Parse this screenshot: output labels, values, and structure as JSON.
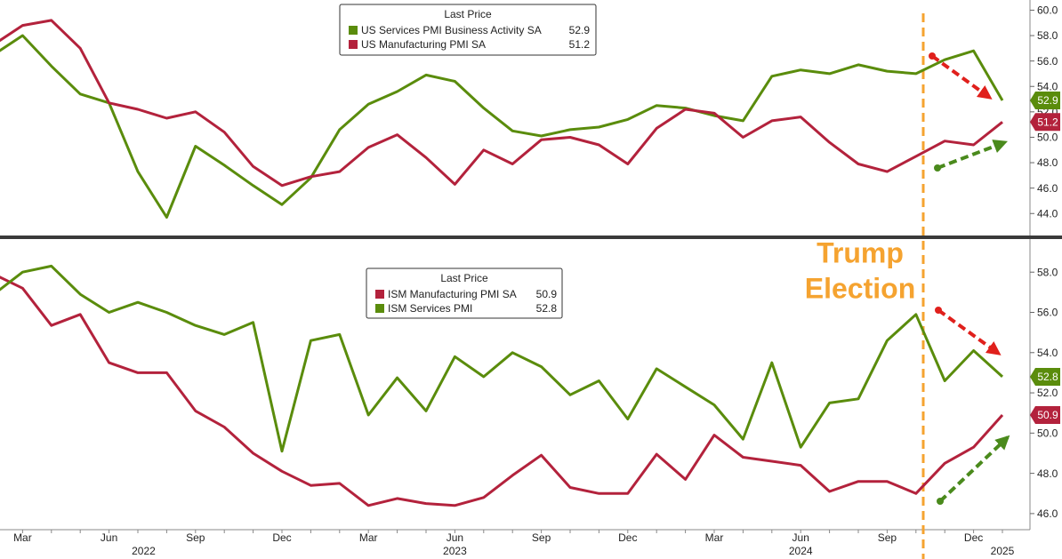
{
  "chart_data": [
    {
      "type": "line",
      "legend_title": "Last Price",
      "ylim": [
        42.2,
        60.8
      ],
      "yticks": [
        {
          "value": 44,
          "label": "44.0"
        },
        {
          "value": 46,
          "label": "46.0"
        },
        {
          "value": 48,
          "label": "48.0"
        },
        {
          "value": 50,
          "label": "50.0"
        },
        {
          "value": 52,
          "label": "52.0"
        },
        {
          "value": 54,
          "label": "54.0"
        },
        {
          "value": 56,
          "label": "56.0"
        },
        {
          "value": 58,
          "label": "58.0"
        },
        {
          "value": 60,
          "label": "60.0"
        }
      ],
      "series": [
        {
          "name": "US Services PMI Business Activity SA",
          "color": "#5a8c0c",
          "values": [
            56.5,
            58.0,
            55.6,
            53.4,
            52.7,
            47.3,
            43.7,
            49.3,
            47.8,
            46.2,
            44.7,
            46.8,
            50.6,
            52.6,
            53.6,
            54.9,
            54.4,
            52.3,
            50.5,
            50.1,
            50.6,
            50.8,
            51.4,
            52.5,
            52.3,
            51.7,
            51.3,
            54.8,
            55.3,
            55.0,
            55.7,
            55.2,
            55.0,
            56.1,
            56.8,
            52.9
          ]
        },
        {
          "name": "US Manufacturing PMI SA",
          "color": "#b3223c",
          "values": [
            57.3,
            58.8,
            59.2,
            57.0,
            52.7,
            52.2,
            51.5,
            52.0,
            50.4,
            47.7,
            46.2,
            46.9,
            47.3,
            49.2,
            50.2,
            48.4,
            46.3,
            49.0,
            47.9,
            49.8,
            50.0,
            49.4,
            47.9,
            50.7,
            52.2,
            51.9,
            50.0,
            51.3,
            51.6,
            49.6,
            47.9,
            47.3,
            48.5,
            49.7,
            49.4,
            51.2
          ]
        }
      ]
    },
    {
      "type": "line",
      "legend_title": "Last Price",
      "categories": [
        null,
        "Mar",
        null,
        null,
        "Jun",
        null,
        null,
        "Sep",
        null,
        null,
        "Dec",
        null,
        null,
        "Mar",
        null,
        null,
        "Jun",
        null,
        null,
        "Sep",
        null,
        null,
        "Dec",
        null,
        null,
        "Mar",
        null,
        null,
        "Jun",
        null,
        null,
        "Sep",
        null,
        null,
        "Dec",
        null
      ],
      "years": [
        "2022",
        "2023",
        "2024",
        "2025"
      ],
      "ylim": [
        45.2,
        59.6
      ],
      "yticks": [
        {
          "value": 46,
          "label": "46.0"
        },
        {
          "value": 48,
          "label": "48.0"
        },
        {
          "value": 50,
          "label": "50.0"
        },
        {
          "value": 52,
          "label": "52.0"
        },
        {
          "value": 54,
          "label": "54.0"
        },
        {
          "value": 56,
          "label": "56.0"
        },
        {
          "value": 58,
          "label": "58.0"
        }
      ],
      "series": [
        {
          "name": "ISM Manufacturing PMI SA",
          "color": "#b3223c",
          "values": [
            57.9,
            57.2,
            55.35,
            55.9,
            53.5,
            53.0,
            53.0,
            51.1,
            50.3,
            49.0,
            48.1,
            47.4,
            47.5,
            46.4,
            46.75,
            46.5,
            46.4,
            46.8,
            47.9,
            48.9,
            47.3,
            47.0,
            47.0,
            48.95,
            47.7,
            49.9,
            48.8,
            48.6,
            48.4,
            47.1,
            47.6,
            47.6,
            47.0,
            48.5,
            49.3,
            50.9
          ]
        },
        {
          "name": "ISM Services PMI",
          "color": "#5a8c0c",
          "values": [
            56.9,
            58.0,
            58.3,
            56.9,
            56.0,
            56.5,
            56.0,
            55.35,
            54.9,
            55.5,
            49.1,
            54.6,
            54.9,
            50.9,
            52.75,
            51.1,
            53.8,
            52.8,
            54.0,
            53.3,
            51.9,
            52.6,
            50.7,
            53.2,
            52.3,
            51.4,
            49.7,
            53.5,
            49.3,
            51.5,
            51.7,
            54.6,
            55.9,
            52.6,
            54.1,
            52.8
          ]
        }
      ]
    }
  ],
  "annotation": [
    "Trump",
    "Election"
  ]
}
